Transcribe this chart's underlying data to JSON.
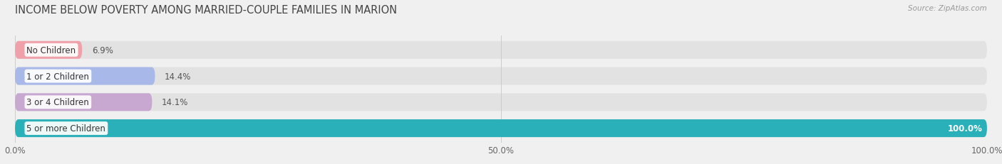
{
  "title": "INCOME BELOW POVERTY AMONG MARRIED-COUPLE FAMILIES IN MARION",
  "source": "Source: ZipAtlas.com",
  "categories": [
    "No Children",
    "1 or 2 Children",
    "3 or 4 Children",
    "5 or more Children"
  ],
  "values": [
    6.9,
    14.4,
    14.1,
    100.0
  ],
  "bar_colors": [
    "#f0a0a8",
    "#a8b8e8",
    "#c8a8d0",
    "#2ab0b8"
  ],
  "background_color": "#f0f0f0",
  "bar_track_color": "#e2e2e2",
  "xlim": [
    0,
    100
  ],
  "xticks": [
    0.0,
    50.0,
    100.0
  ],
  "xtick_labels": [
    "0.0%",
    "50.0%",
    "100.0%"
  ],
  "title_fontsize": 10.5,
  "label_fontsize": 8.5,
  "value_fontsize": 8.5,
  "bar_height": 0.68,
  "fig_width": 14.06,
  "fig_height": 2.32
}
